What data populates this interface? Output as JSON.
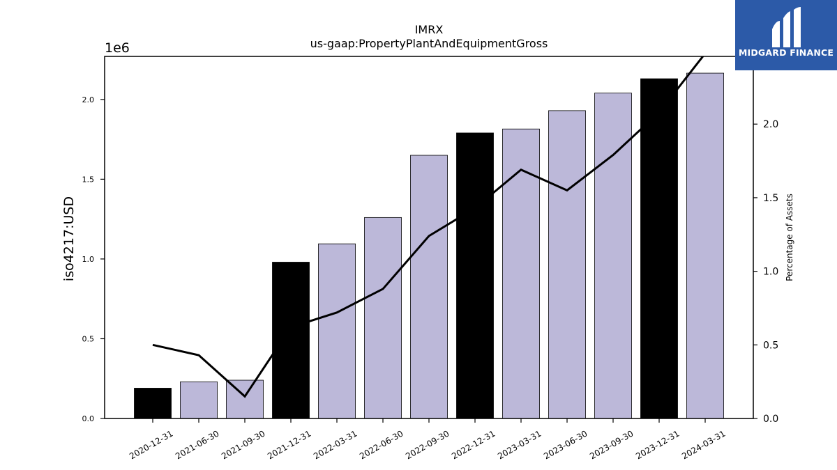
{
  "chart_data": {
    "type": "bar",
    "title": "IMRX",
    "subtitle": "us-gaap:PropertyPlantAndEquipmentGross",
    "ylabel": "iso4217:USD",
    "y2label": "Percentage of Assets",
    "y_offset_label": "1e6",
    "ylim": [
      0,
      2.27
    ],
    "y2lim": [
      0,
      2.46
    ],
    "y_ticks": [
      "0.0",
      "0.5",
      "1.0",
      "1.5",
      "2.0"
    ],
    "y2_ticks": [
      "0.0",
      "0.5",
      "1.0",
      "1.5",
      "2.0"
    ],
    "categories": [
      "2020-12-31",
      "2021-06-30",
      "2021-09-30",
      "2021-12-31",
      "2022-03-31",
      "2022-06-30",
      "2022-09-30",
      "2022-12-31",
      "2023-03-31",
      "2023-06-30",
      "2023-09-30",
      "2023-12-31",
      "2024-03-31"
    ],
    "series": [
      {
        "type": "bar",
        "values": [
          0.19,
          0.23,
          0.24,
          0.98,
          1.095,
          1.26,
          1.65,
          1.79,
          1.815,
          1.93,
          2.04,
          2.13,
          2.165
        ],
        "colors": [
          "#000000",
          "#bcb8d9",
          "#bcb8d9",
          "#000000",
          "#bcb8d9",
          "#bcb8d9",
          "#bcb8d9",
          "#000000",
          "#bcb8d9",
          "#bcb8d9",
          "#bcb8d9",
          "#000000",
          "#bcb8d9"
        ]
      },
      {
        "type": "line",
        "axis": "right",
        "color": "#000000",
        "values": [
          0.5,
          0.43,
          0.15,
          0.62,
          0.72,
          0.88,
          1.24,
          1.43,
          1.69,
          1.55,
          1.79,
          2.08,
          2.48
        ]
      }
    ],
    "grid": false
  },
  "logo": {
    "text": "MIDGARD FINANCE",
    "background": "#2c5aa8"
  }
}
